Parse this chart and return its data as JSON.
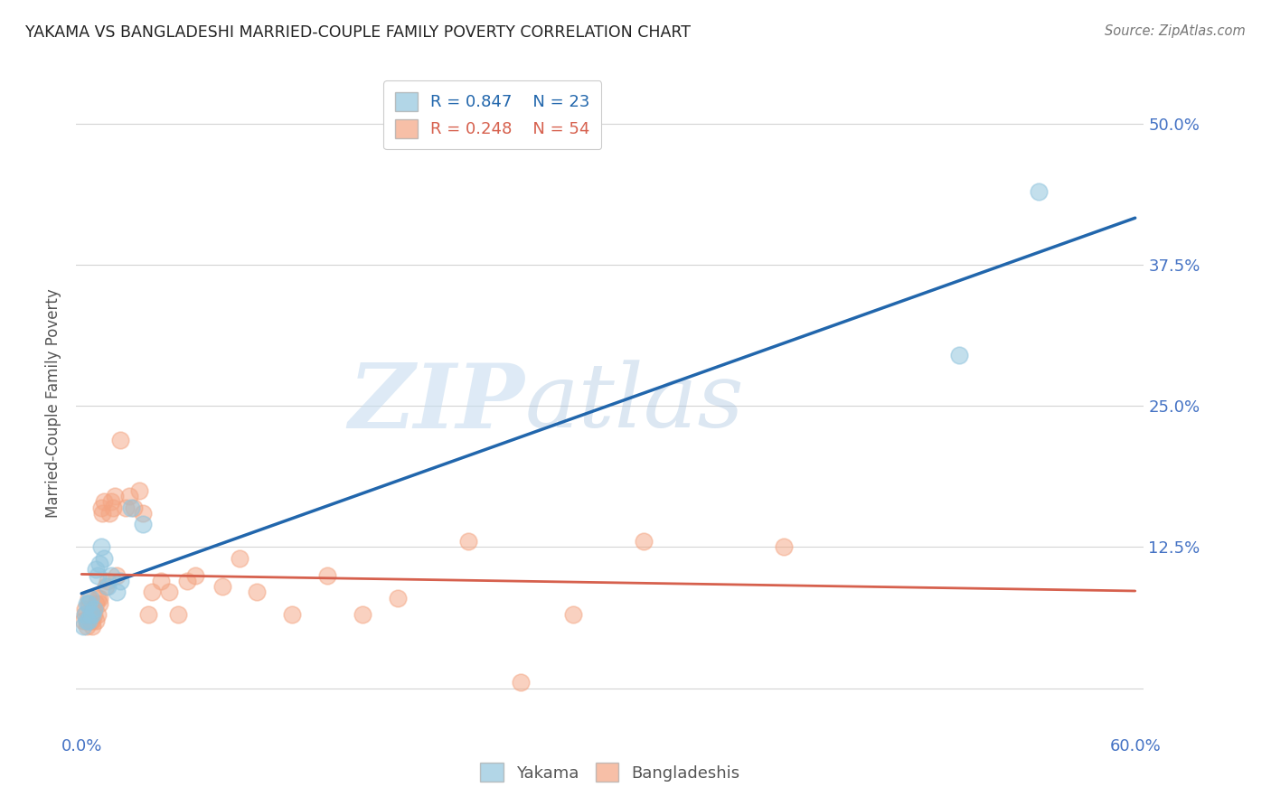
{
  "title": "YAKAMA VS BANGLADESHI MARRIED-COUPLE FAMILY POVERTY CORRELATION CHART",
  "source": "Source: ZipAtlas.com",
  "ylabel_label": "Married-Couple Family Poverty",
  "xmin": 0.0,
  "xmax": 0.6,
  "ymin": -0.04,
  "ymax": 0.545,
  "xticks": [
    0.0,
    0.1,
    0.2,
    0.3,
    0.4,
    0.5,
    0.6
  ],
  "xtick_labels": [
    "0.0%",
    "",
    "",
    "",
    "",
    "",
    "60.0%"
  ],
  "yticks": [
    0.0,
    0.125,
    0.25,
    0.375,
    0.5
  ],
  "ytick_labels": [
    "",
    "12.5%",
    "25.0%",
    "37.5%",
    "50.0%"
  ],
  "yakama_color": "#92c5de",
  "bangladeshi_color": "#f4a582",
  "yakama_line_color": "#2166ac",
  "bangladeshi_line_color": "#d6604d",
  "background_color": "#ffffff",
  "grid_color": "#d0d0d0",
  "watermark_zip": "ZIP",
  "watermark_atlas": "atlas",
  "legend_R_yakama": "R = 0.847",
  "legend_N_yakama": "N = 23",
  "legend_R_bangladeshi": "R = 0.248",
  "legend_N_bangladeshi": "N = 54",
  "yakama_x": [
    0.001,
    0.002,
    0.003,
    0.003,
    0.004,
    0.004,
    0.005,
    0.005,
    0.006,
    0.007,
    0.008,
    0.009,
    0.01,
    0.011,
    0.013,
    0.015,
    0.017,
    0.02,
    0.022,
    0.028,
    0.035,
    0.5,
    0.545
  ],
  "yakama_y": [
    0.055,
    0.065,
    0.06,
    0.075,
    0.06,
    0.075,
    0.065,
    0.08,
    0.065,
    0.07,
    0.105,
    0.1,
    0.11,
    0.125,
    0.115,
    0.09,
    0.1,
    0.085,
    0.095,
    0.16,
    0.145,
    0.295,
    0.44
  ],
  "bangladeshi_x": [
    0.001,
    0.002,
    0.002,
    0.003,
    0.003,
    0.004,
    0.004,
    0.005,
    0.005,
    0.006,
    0.006,
    0.007,
    0.007,
    0.008,
    0.008,
    0.009,
    0.009,
    0.01,
    0.01,
    0.011,
    0.012,
    0.013,
    0.014,
    0.015,
    0.016,
    0.017,
    0.018,
    0.019,
    0.02,
    0.022,
    0.025,
    0.027,
    0.03,
    0.033,
    0.035,
    0.038,
    0.04,
    0.045,
    0.05,
    0.055,
    0.06,
    0.065,
    0.08,
    0.09,
    0.1,
    0.12,
    0.14,
    0.16,
    0.18,
    0.22,
    0.25,
    0.28,
    0.32,
    0.4
  ],
  "bangladeshi_y": [
    0.06,
    0.065,
    0.07,
    0.055,
    0.06,
    0.08,
    0.075,
    0.06,
    0.065,
    0.055,
    0.06,
    0.07,
    0.065,
    0.06,
    0.075,
    0.065,
    0.08,
    0.075,
    0.08,
    0.16,
    0.155,
    0.165,
    0.09,
    0.095,
    0.155,
    0.165,
    0.16,
    0.17,
    0.1,
    0.22,
    0.16,
    0.17,
    0.16,
    0.175,
    0.155,
    0.065,
    0.085,
    0.095,
    0.085,
    0.065,
    0.095,
    0.1,
    0.09,
    0.115,
    0.085,
    0.065,
    0.1,
    0.065,
    0.08,
    0.13,
    0.005,
    0.065,
    0.13,
    0.125
  ],
  "title_color": "#222222",
  "axis_label_color": "#555555",
  "tick_label_color": "#4472c4",
  "source_color": "#777777",
  "legend_text_color_1": "#2166ac",
  "legend_text_color_2": "#d6604d"
}
